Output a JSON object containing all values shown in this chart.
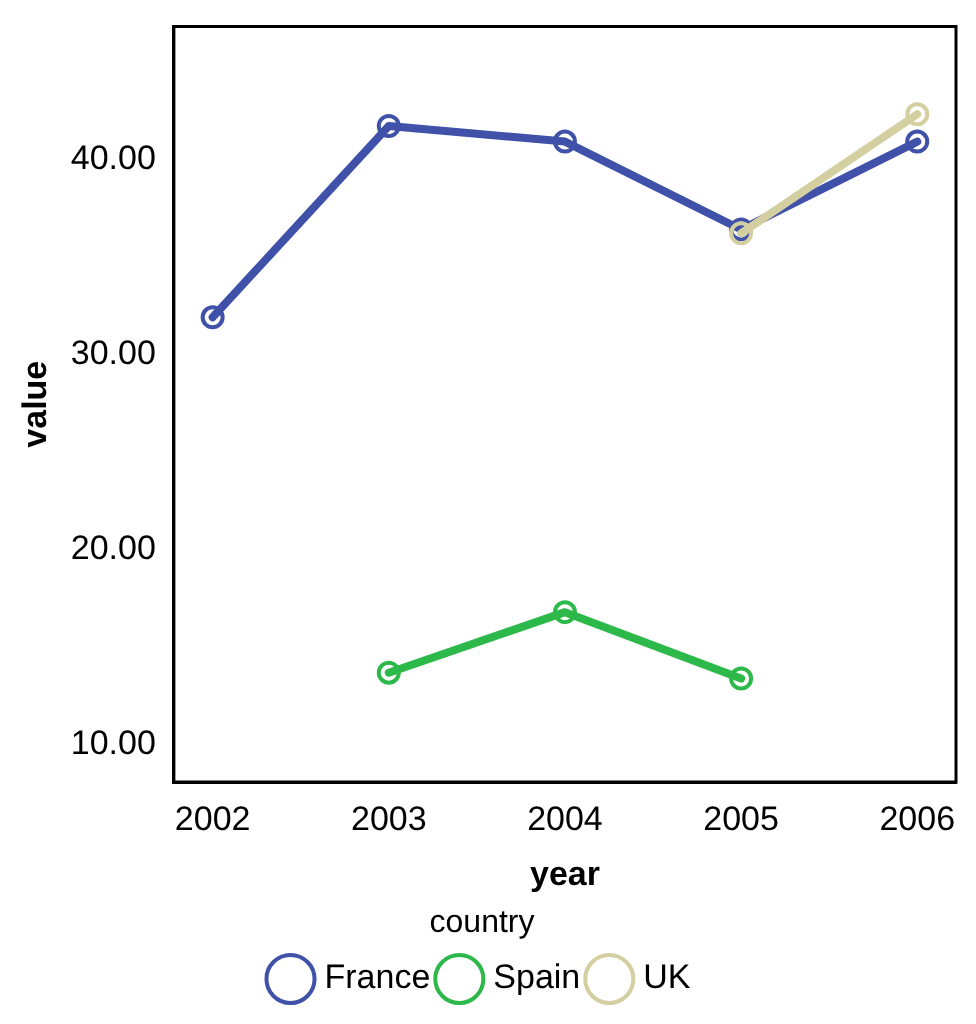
{
  "chart_data": {
    "type": "line",
    "xlabel": "year",
    "ylabel": "value",
    "legend_title": "country",
    "xlim": [
      2001.78,
      2006.22
    ],
    "xticks": [
      2002,
      2003,
      2004,
      2005,
      2006
    ],
    "ylim": [
      8.1,
      46.8
    ],
    "yticks": [
      {
        "value": 10,
        "label": "10.00"
      },
      {
        "value": 20,
        "label": "20.00"
      },
      {
        "value": 30,
        "label": "30.00"
      },
      {
        "value": 40,
        "label": "40.00"
      }
    ],
    "grid": false,
    "legend": "bottom",
    "marker": "circle",
    "line_style": "solid",
    "series": [
      {
        "name": "France",
        "color": "#3f51a8",
        "x": [
          2002,
          2003,
          2004,
          2005,
          2006
        ],
        "values": [
          31.9,
          41.7,
          40.9,
          36.4,
          40.9
        ]
      },
      {
        "name": "Spain",
        "color": "#2db84a",
        "x": [
          2003,
          2004,
          2005
        ],
        "values": [
          13.7,
          16.8,
          13.4
        ]
      },
      {
        "name": "UK",
        "color": "#d4cfa0",
        "x": [
          2005,
          2006
        ],
        "values": [
          36.2,
          42.3
        ]
      }
    ]
  }
}
